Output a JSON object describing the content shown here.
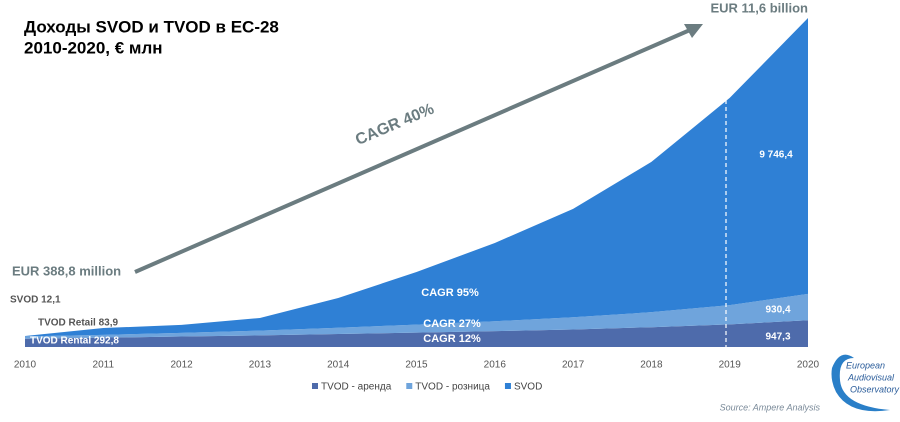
{
  "chart_data": {
    "type": "stacked_area",
    "title": [
      "Доходы  SVOD и TVOD в ЕС-28",
      "2010-2020, € млн"
    ],
    "categories": [
      "2010",
      "2011",
      "2012",
      "2013",
      "2014",
      "2015",
      "2016",
      "2017",
      "2018",
      "2019",
      "2020"
    ],
    "series": [
      {
        "name": "TVOD - аренда",
        "color": "#4e6bab",
        "values": [
          292.8,
          330,
          370,
          410,
          460,
          510,
          560,
          620,
          700,
          800,
          947.3
        ],
        "value_labels": [
          "TVOD Rental 292,8",
          null,
          null,
          null,
          null,
          null,
          null,
          null,
          null,
          null,
          "947,3"
        ]
      },
      {
        "name": "TVOD - розница",
        "color": "#6fa4dc",
        "values": [
          83.9,
          100,
          130,
          170,
          220,
          280,
          350,
          430,
          530,
          680,
          930.4
        ],
        "value_labels": [
          "TVOD Retail 83,9",
          null,
          null,
          null,
          null,
          null,
          null,
          null,
          null,
          null,
          "930,4"
        ]
      },
      {
        "name": "SVOD",
        "color": "#2f80d5",
        "values": [
          12.1,
          240,
          280,
          445,
          1050,
          1860,
          2765,
          3830,
          5310,
          7320,
          9746.4
        ],
        "value_labels": [
          "SVOD 12,1",
          null,
          null,
          null,
          null,
          null,
          null,
          null,
          null,
          null,
          "9 746,4"
        ]
      }
    ],
    "annotations": [
      "EUR 11,6 billion",
      "EUR 388,8 million",
      "CAGR 40%",
      "CAGR 95%",
      "CAGR 27%",
      "CAGR 12%"
    ],
    "source": "Source: Ampere Analysis",
    "logo": [
      "European",
      "Audiovisual",
      "Observatory"
    ]
  }
}
